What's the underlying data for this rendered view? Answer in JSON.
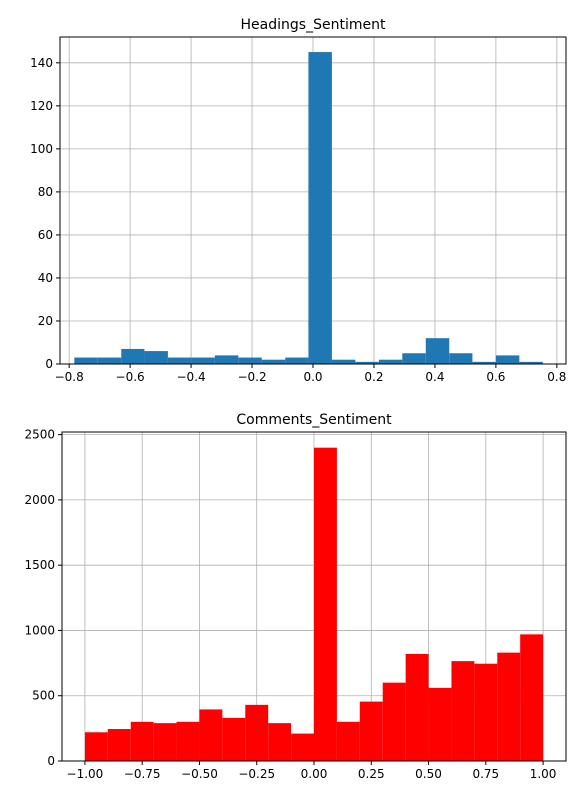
{
  "chart_data": [
    {
      "type": "bar",
      "title": "Headings_Sentiment",
      "xlabel": "",
      "ylabel": "",
      "xlim": [
        -0.83,
        0.83
      ],
      "ylim": [
        0,
        152
      ],
      "grid": true,
      "legend": "none",
      "bar_color": "#1f77b4",
      "x_ticks": [
        -0.8,
        -0.6,
        -0.4,
        -0.2,
        0.0,
        0.2,
        0.4,
        0.6,
        0.8
      ],
      "x_tick_labels": [
        "−0.8",
        "−0.6",
        "−0.4",
        "−0.2",
        "0.0",
        "0.2",
        "0.4",
        "0.6",
        "0.8"
      ],
      "y_ticks": [
        0,
        20,
        40,
        60,
        80,
        100,
        120,
        140
      ],
      "y_tick_labels": [
        "0",
        "20",
        "40",
        "60",
        "80",
        "100",
        "120",
        "140"
      ],
      "bin_edges": [
        -0.783,
        -0.706,
        -0.629,
        -0.553,
        -0.476,
        -0.399,
        -0.322,
        -0.245,
        -0.168,
        -0.091,
        -0.015,
        0.062,
        0.139,
        0.216,
        0.293,
        0.37,
        0.447,
        0.523,
        0.6,
        0.677,
        0.754
      ],
      "values": [
        3,
        3,
        7,
        6,
        3,
        3,
        4,
        3,
        2,
        3,
        145,
        2,
        1,
        2,
        5,
        12,
        5,
        1,
        4,
        1
      ]
    },
    {
      "type": "bar",
      "title": "Comments_Sentiment",
      "xlabel": "",
      "ylabel": "",
      "xlim": [
        -1.1,
        1.1
      ],
      "ylim": [
        0,
        2520
      ],
      "grid": true,
      "legend": "none",
      "bar_color": "#ff0000",
      "x_ticks": [
        -1.0,
        -0.75,
        -0.5,
        -0.25,
        0.0,
        0.25,
        0.5,
        0.75,
        1.0
      ],
      "x_tick_labels": [
        "−1.00",
        "−0.75",
        "−0.50",
        "−0.25",
        "0.00",
        "0.25",
        "0.50",
        "0.75",
        "1.00"
      ],
      "y_ticks": [
        0,
        500,
        1000,
        1500,
        2000,
        2500
      ],
      "y_tick_labels": [
        "0",
        "500",
        "1000",
        "1500",
        "2000",
        "2500"
      ],
      "bin_edges": [
        -1.0,
        -0.9,
        -0.8,
        -0.7,
        -0.6,
        -0.5,
        -0.4,
        -0.3,
        -0.2,
        -0.1,
        0.0,
        0.1,
        0.2,
        0.3,
        0.4,
        0.5,
        0.6,
        0.7,
        0.8,
        0.9,
        1.0
      ],
      "values": [
        220,
        245,
        300,
        290,
        300,
        395,
        330,
        430,
        290,
        210,
        2400,
        300,
        455,
        600,
        820,
        560,
        765,
        745,
        830,
        970
      ]
    }
  ]
}
